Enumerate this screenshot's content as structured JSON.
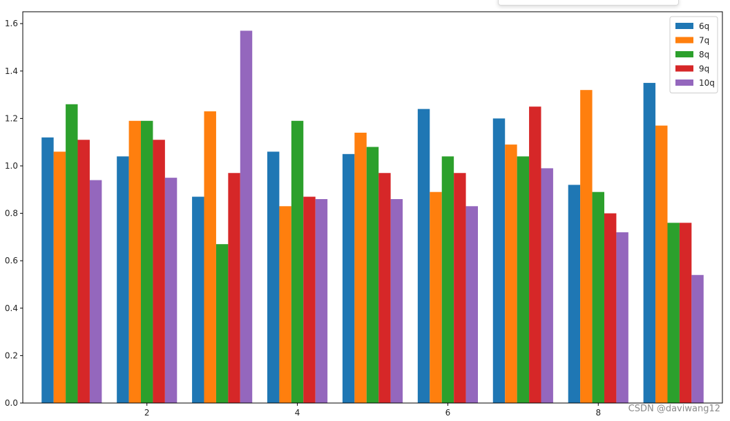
{
  "chart_data": {
    "type": "bar",
    "title": "",
    "xlabel": "",
    "ylabel": "",
    "x": [
      1,
      2,
      3,
      4,
      5,
      6,
      7,
      8,
      9
    ],
    "xticks": [
      2,
      4,
      6,
      8
    ],
    "xlim": [
      0.35,
      9.65
    ],
    "ylim": [
      0,
      1.65
    ],
    "yticks": [
      0.0,
      0.2,
      0.4,
      0.6,
      0.8,
      1.0,
      1.2,
      1.4,
      1.6
    ],
    "grid": false,
    "legend_position": "top-right",
    "series": [
      {
        "name": "6q",
        "color": "#1f77b4",
        "values": [
          1.12,
          1.04,
          0.87,
          1.06,
          1.05,
          1.24,
          1.2,
          0.92,
          1.35
        ]
      },
      {
        "name": "7q",
        "color": "#ff7f0e",
        "values": [
          1.06,
          1.19,
          1.23,
          0.83,
          1.14,
          0.89,
          1.09,
          1.32,
          1.17
        ]
      },
      {
        "name": "8q",
        "color": "#2ca02c",
        "values": [
          1.26,
          1.19,
          0.67,
          1.19,
          1.08,
          1.04,
          1.04,
          0.89,
          0.76
        ]
      },
      {
        "name": "9q",
        "color": "#d62728",
        "values": [
          1.11,
          1.11,
          0.97,
          0.87,
          0.97,
          0.97,
          1.25,
          0.8,
          0.76
        ]
      },
      {
        "name": "10q",
        "color": "#9467bd",
        "values": [
          0.94,
          0.95,
          1.57,
          0.86,
          0.86,
          0.83,
          0.99,
          0.72,
          0.54
        ]
      }
    ]
  },
  "watermark": "CSDN @daviwang12"
}
